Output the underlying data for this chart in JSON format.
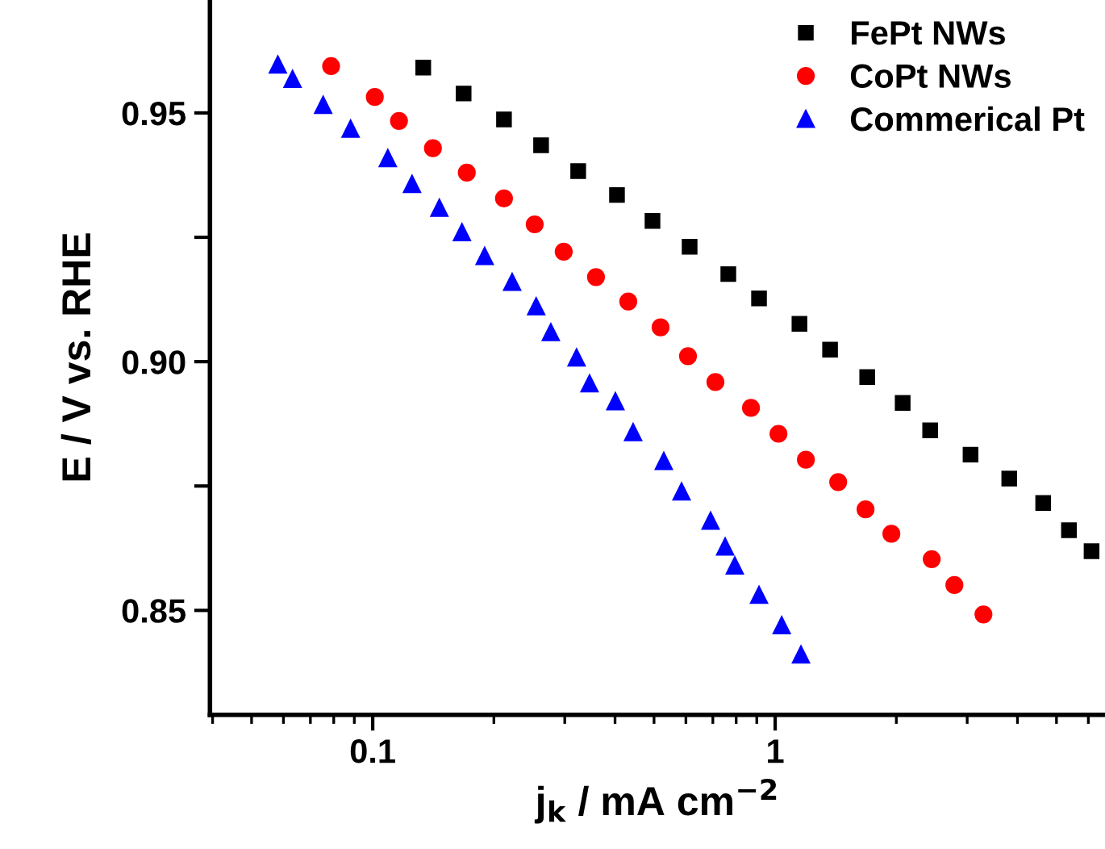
{
  "chart_data": {
    "type": "scatter",
    "xlabel": "j$_{k}$ / mA cm$^{−2}$",
    "ylabel": "E / V vs. RHE",
    "log": "x",
    "xlim": [
      0.0394,
      6.6
    ],
    "xticks": [
      0.1,
      1
    ],
    "ylim": [
      0.829,
      0.9727
    ],
    "yticks": [
      {
        "value": 0.85,
        "label": "0.85"
      },
      {
        "value": 0.875,
        "label": null
      },
      {
        "value": 0.9,
        "label": "0.90"
      },
      {
        "value": 0.925,
        "label": null
      },
      {
        "value": 0.95,
        "label": "0.95"
      }
    ],
    "grid": false,
    "legend": "top right",
    "series": [
      {
        "name": "FePt NWs",
        "color": "#000000",
        "marker": "square",
        "x": [
          0.1335,
          0.1682,
          0.2119,
          0.262,
          0.324,
          0.4045,
          0.4956,
          0.6129,
          0.7648,
          0.9117,
          1.149,
          1.369,
          1.693,
          2.074,
          2.427,
          3.058,
          3.816,
          4.634,
          5.37,
          6.112
        ],
        "values": [
          0.9591,
          0.9539,
          0.9487,
          0.9435,
          0.9383,
          0.9335,
          0.9283,
          0.9231,
          0.9176,
          0.9127,
          0.9076,
          0.9024,
          0.8969,
          0.8917,
          0.8862,
          0.8813,
          0.8765,
          0.8716,
          0.8661,
          0.8619
        ]
      },
      {
        "name": "CoPt NWs",
        "color": "#ff0000",
        "marker": "circle",
        "x": [
          0.0788,
          0.1012,
          0.1162,
          0.1411,
          0.1713,
          0.2119,
          0.2526,
          0.2982,
          0.3587,
          0.4315,
          0.519,
          0.6072,
          0.7104,
          0.8706,
          1.019,
          1.192,
          1.434,
          1.677,
          1.944,
          2.449,
          2.788,
          3.292
        ],
        "values": [
          0.9594,
          0.9532,
          0.9484,
          0.9429,
          0.938,
          0.9328,
          0.9276,
          0.9221,
          0.917,
          0.9121,
          0.9069,
          0.9011,
          0.8959,
          0.8907,
          0.8855,
          0.8803,
          0.8758,
          0.8703,
          0.8654,
          0.8603,
          0.8551,
          0.8492
        ]
      },
      {
        "name": "Commerical Pt",
        "color": "#0000ff",
        "marker": "triangle",
        "x": [
          0.0581,
          0.0632,
          0.0753,
          0.0881,
          0.109,
          0.1252,
          0.1464,
          0.1666,
          0.1897,
          0.222,
          0.2548,
          0.277,
          0.321,
          0.3457,
          0.4008,
          0.4436,
          0.5287,
          0.5853,
          0.691,
          0.751,
          0.7937,
          0.9117,
          1.038,
          1.159
        ],
        "values": [
          0.9597,
          0.9568,
          0.9516,
          0.9468,
          0.9409,
          0.9357,
          0.9309,
          0.926,
          0.9212,
          0.916,
          0.9111,
          0.9059,
          0.9008,
          0.8956,
          0.892,
          0.8858,
          0.88,
          0.8739,
          0.868,
          0.8628,
          0.859,
          0.8531,
          0.847,
          0.8411
        ]
      }
    ]
  }
}
